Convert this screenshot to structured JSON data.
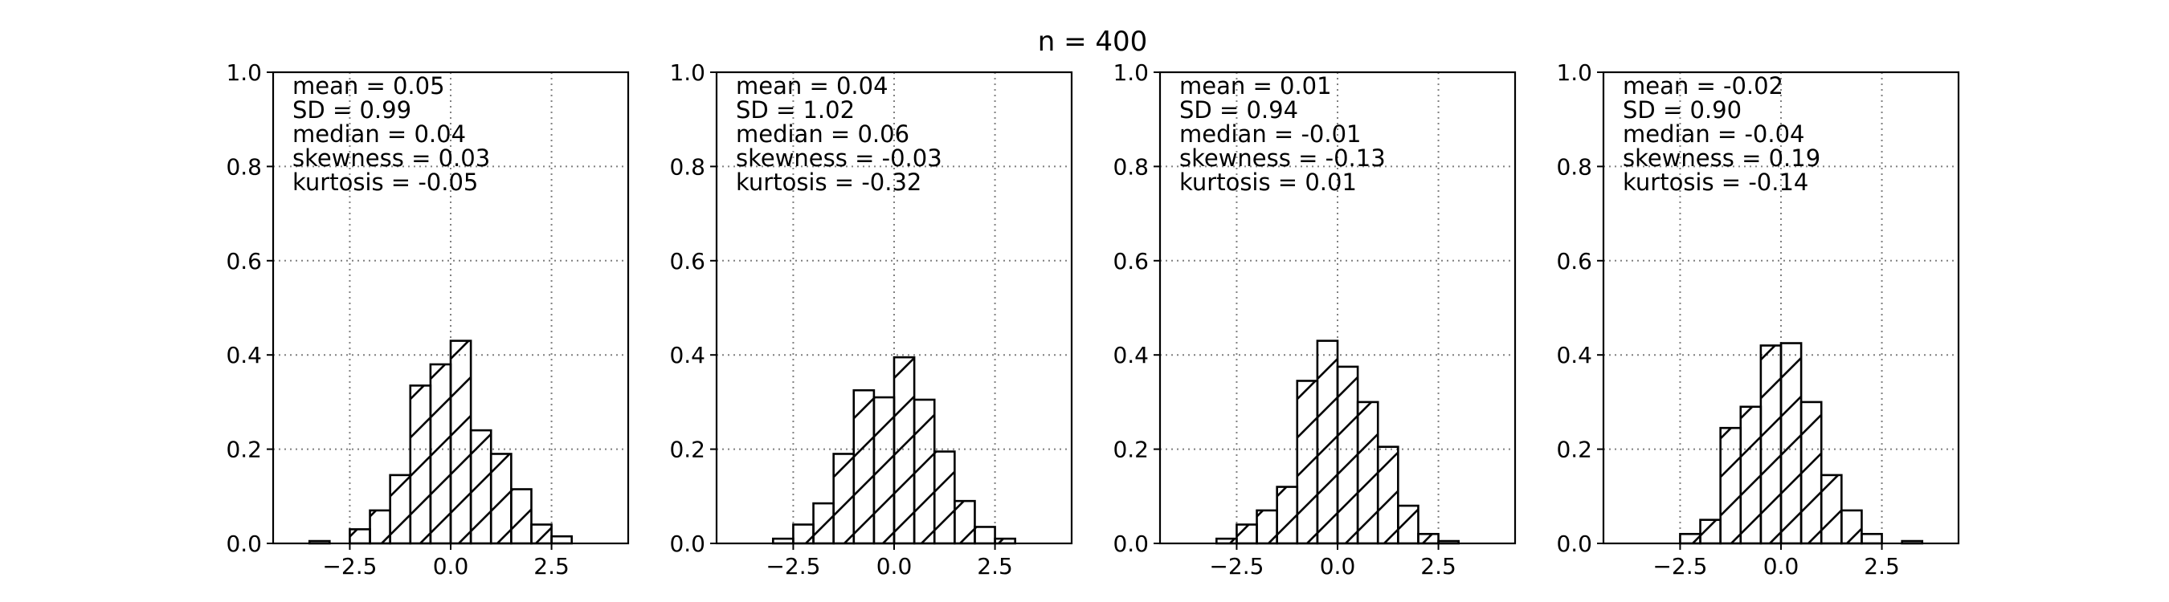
{
  "chart_data": {
    "type": "bar",
    "title": "n = 400",
    "subplots": [
      {
        "stats": [
          "mean = 0.05",
          "SD = 0.99",
          "median = 0.04",
          "skewness = 0.03",
          "kurtosis = -0.05"
        ],
        "xlim": [
          -4.4,
          4.4
        ],
        "ylim": [
          0,
          1.0
        ],
        "xticks": [
          -2.5,
          0.0,
          2.5
        ],
        "xtick_labels": [
          "−2.5",
          "0.0",
          "2.5"
        ],
        "yticks": [
          0.0,
          0.2,
          0.4,
          0.6,
          0.8,
          1.0
        ],
        "ytick_labels": [
          "0.0",
          "0.2",
          "0.4",
          "0.6",
          "0.8",
          "1.0"
        ],
        "grid": true,
        "bin_edges": [
          -4.0,
          -3.5,
          -3.0,
          -2.5,
          -2.0,
          -1.5,
          -1.0,
          -0.5,
          0.0,
          0.5,
          1.0,
          1.5,
          2.0,
          2.5,
          3.0,
          3.5,
          4.0
        ],
        "values": [
          0.0,
          0.005,
          0.0,
          0.03,
          0.07,
          0.145,
          0.335,
          0.38,
          0.43,
          0.24,
          0.19,
          0.115,
          0.04,
          0.015,
          0.0,
          0.0
        ]
      },
      {
        "stats": [
          "mean = 0.04",
          "SD = 1.02",
          "median = 0.06",
          "skewness = -0.03",
          "kurtosis = -0.32"
        ],
        "xlim": [
          -4.4,
          4.4
        ],
        "ylim": [
          0,
          1.0
        ],
        "xticks": [
          -2.5,
          0.0,
          2.5
        ],
        "xtick_labels": [
          "−2.5",
          "0.0",
          "2.5"
        ],
        "yticks": [
          0.0,
          0.2,
          0.4,
          0.6,
          0.8,
          1.0
        ],
        "ytick_labels": [
          "0.0",
          "0.2",
          "0.4",
          "0.6",
          "0.8",
          "1.0"
        ],
        "grid": true,
        "bin_edges": [
          -4.0,
          -3.5,
          -3.0,
          -2.5,
          -2.0,
          -1.5,
          -1.0,
          -0.5,
          0.0,
          0.5,
          1.0,
          1.5,
          2.0,
          2.5,
          3.0,
          3.5,
          4.0
        ],
        "values": [
          0.0,
          0.0,
          0.01,
          0.04,
          0.085,
          0.19,
          0.325,
          0.31,
          0.395,
          0.305,
          0.195,
          0.09,
          0.035,
          0.01,
          0.0,
          0.0
        ]
      },
      {
        "stats": [
          "mean = 0.01",
          "SD = 0.94",
          "median = -0.01",
          "skewness = -0.13",
          "kurtosis = 0.01"
        ],
        "xlim": [
          -4.4,
          4.4
        ],
        "ylim": [
          0,
          1.0
        ],
        "xticks": [
          -2.5,
          0.0,
          2.5
        ],
        "xtick_labels": [
          "−2.5",
          "0.0",
          "2.5"
        ],
        "yticks": [
          0.0,
          0.2,
          0.4,
          0.6,
          0.8,
          1.0
        ],
        "ytick_labels": [
          "0.0",
          "0.2",
          "0.4",
          "0.6",
          "0.8",
          "1.0"
        ],
        "grid": true,
        "bin_edges": [
          -4.0,
          -3.5,
          -3.0,
          -2.5,
          -2.0,
          -1.5,
          -1.0,
          -0.5,
          0.0,
          0.5,
          1.0,
          1.5,
          2.0,
          2.5,
          3.0,
          3.5,
          4.0
        ],
        "values": [
          0.0,
          0.0,
          0.01,
          0.04,
          0.07,
          0.12,
          0.345,
          0.43,
          0.375,
          0.3,
          0.205,
          0.08,
          0.02,
          0.005,
          0.0,
          0.0
        ]
      },
      {
        "stats": [
          "mean = -0.02",
          "SD = 0.90",
          "median = -0.04",
          "skewness = 0.19",
          "kurtosis = -0.14"
        ],
        "xlim": [
          -4.4,
          4.4
        ],
        "ylim": [
          0,
          1.0
        ],
        "xticks": [
          -2.5,
          0.0,
          2.5
        ],
        "xtick_labels": [
          "−2.5",
          "0.0",
          "2.5"
        ],
        "yticks": [
          0.0,
          0.2,
          0.4,
          0.6,
          0.8,
          1.0
        ],
        "ytick_labels": [
          "0.0",
          "0.2",
          "0.4",
          "0.6",
          "0.8",
          "1.0"
        ],
        "grid": true,
        "bin_edges": [
          -4.0,
          -3.5,
          -3.0,
          -2.5,
          -2.0,
          -1.5,
          -1.0,
          -0.5,
          0.0,
          0.5,
          1.0,
          1.5,
          2.0,
          2.5,
          3.0,
          3.5,
          4.0
        ],
        "values": [
          0.0,
          0.0,
          0.0,
          0.02,
          0.05,
          0.245,
          0.29,
          0.42,
          0.425,
          0.3,
          0.145,
          0.07,
          0.02,
          0.0,
          0.005,
          0.0
        ]
      }
    ]
  }
}
